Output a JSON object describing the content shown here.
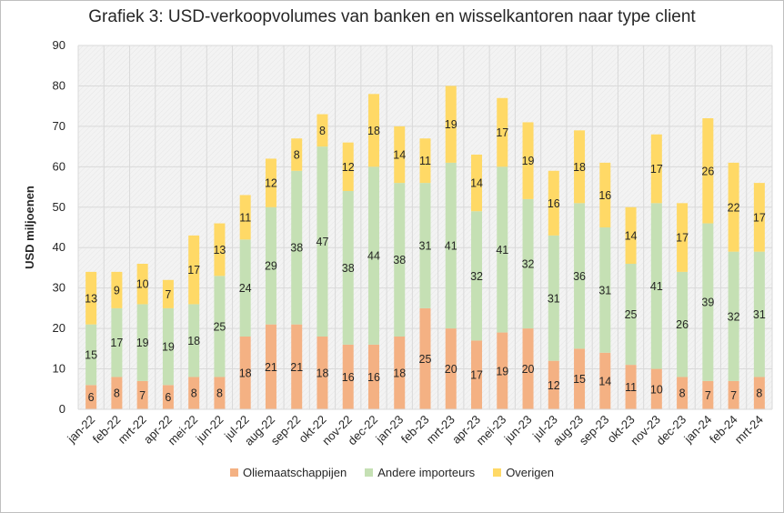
{
  "chart_data": {
    "type": "bar",
    "stacked": true,
    "title": "Grafiek 3: USD-verkoopvolumes van banken en wisselkantoren naar type client",
    "xlabel": "",
    "ylabel": "USD miljoenen",
    "ylim": [
      0,
      90
    ],
    "yticks": [
      0,
      10,
      20,
      30,
      40,
      50,
      60,
      70,
      80,
      90
    ],
    "grid": true,
    "legend_position": "bottom",
    "categories": [
      "jan-22",
      "feb-22",
      "mrt-22",
      "apr-22",
      "mei-22",
      "jun-22",
      "jul-22",
      "aug-22",
      "sep-22",
      "okt-22",
      "nov-22",
      "dec-22",
      "jan-23",
      "feb-23",
      "mrt-23",
      "apr-23",
      "mei-23",
      "jun-23",
      "jul-23",
      "aug-23",
      "sep-23",
      "okt-23",
      "nov-23",
      "dec-23",
      "jan-24",
      "feb-24",
      "mrt-24"
    ],
    "series": [
      {
        "name": "Oliemaatschappijen",
        "color": "#f4b183",
        "values": [
          6,
          8,
          7,
          6,
          8,
          8,
          18,
          21,
          21,
          18,
          16,
          16,
          18,
          25,
          20,
          17,
          19,
          20,
          12,
          15,
          14,
          11,
          10,
          8,
          7,
          7,
          8
        ]
      },
      {
        "name": "Andere importeurs",
        "color": "#c5e0b4",
        "values": [
          15,
          17,
          19,
          19,
          18,
          25,
          24,
          29,
          38,
          47,
          38,
          44,
          38,
          31,
          41,
          32,
          41,
          32,
          31,
          36,
          31,
          25,
          41,
          26,
          39,
          32,
          31
        ]
      },
      {
        "name": "Overigen",
        "color": "#ffd966",
        "values": [
          13,
          9,
          10,
          7,
          17,
          13,
          11,
          12,
          8,
          8,
          12,
          18,
          14,
          11,
          19,
          14,
          17,
          19,
          16,
          18,
          16,
          14,
          17,
          17,
          26,
          22,
          17
        ]
      }
    ]
  }
}
